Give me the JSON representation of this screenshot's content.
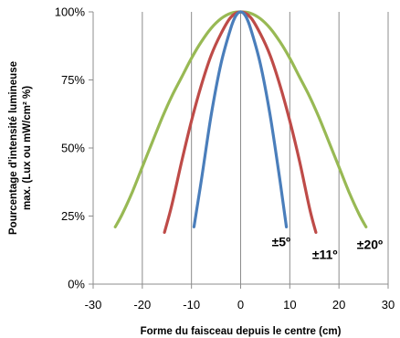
{
  "chart_data": {
    "type": "line",
    "title": "",
    "xlabel": "Forme du faisceau depuis le centre (cm)",
    "ylabel_lines": [
      "Pourcentage d'intensité lumineuse",
      "max. (Lux ou mW/cm² %)"
    ],
    "xlim": [
      -30,
      30
    ],
    "ylim": [
      0,
      100
    ],
    "x_ticks": [
      -30,
      -20,
      -10,
      0,
      10,
      20,
      30
    ],
    "y_ticks": [
      0,
      25,
      50,
      75,
      100
    ],
    "y_tick_labels": [
      "0%",
      "25%",
      "50%",
      "75%",
      "100%"
    ],
    "grid": "vertical",
    "series": [
      {
        "name": "±5º",
        "color": "#4a7ebb",
        "points": [
          [
            -9.5,
            21
          ],
          [
            -8,
            38
          ],
          [
            -6,
            62
          ],
          [
            -4,
            81
          ],
          [
            -2,
            94
          ],
          [
            -1,
            98.5
          ],
          [
            0,
            100
          ],
          [
            1,
            98.5
          ],
          [
            2,
            94
          ],
          [
            4,
            81
          ],
          [
            6,
            62
          ],
          [
            8,
            38
          ],
          [
            9.3,
            21
          ]
        ]
      },
      {
        "name": "±11º",
        "color": "#be4b48",
        "points": [
          [
            -15.5,
            19
          ],
          [
            -14,
            29
          ],
          [
            -12,
            45
          ],
          [
            -10,
            60
          ],
          [
            -8,
            73
          ],
          [
            -6,
            84
          ],
          [
            -4,
            92
          ],
          [
            -2,
            98
          ],
          [
            0,
            100
          ],
          [
            2,
            98
          ],
          [
            4,
            92
          ],
          [
            6,
            84
          ],
          [
            8,
            73
          ],
          [
            10,
            60
          ],
          [
            12,
            45
          ],
          [
            14,
            28
          ],
          [
            15.3,
            19
          ]
        ]
      },
      {
        "name": "±20º",
        "color": "#98b954",
        "points": [
          [
            -25.5,
            21
          ],
          [
            -24,
            26
          ],
          [
            -22,
            34
          ],
          [
            -20,
            43
          ],
          [
            -18,
            52
          ],
          [
            -16,
            61
          ],
          [
            -14,
            69
          ],
          [
            -12,
            76
          ],
          [
            -10,
            83
          ],
          [
            -8,
            89
          ],
          [
            -6,
            94
          ],
          [
            -4,
            97.5
          ],
          [
            -2,
            99.5
          ],
          [
            0,
            100
          ],
          [
            2,
            99.5
          ],
          [
            4,
            97.5
          ],
          [
            6,
            94
          ],
          [
            8,
            89
          ],
          [
            10,
            83
          ],
          [
            12,
            76
          ],
          [
            14,
            69
          ],
          [
            16,
            61
          ],
          [
            18,
            52
          ],
          [
            20,
            43
          ],
          [
            22,
            34
          ],
          [
            24,
            26
          ],
          [
            25.5,
            21
          ]
        ]
      }
    ]
  }
}
